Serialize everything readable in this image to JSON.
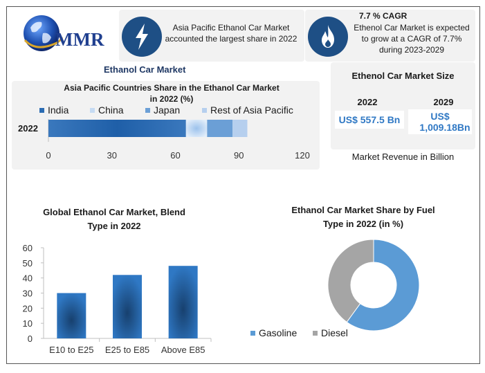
{
  "header": {
    "logo_text": "MMR",
    "card1_text": "Asia Pacific Ethanol Car Market accounted the largest share in 2022",
    "card2_title": "7.7 % CAGR",
    "card2_text": "Ethenol Car Market is expected to grow at a CAGR of 7.7% during 2023-2029"
  },
  "section_title": "Ethanol Car Market",
  "market_size": {
    "title": "Ethenol Car Market Size",
    "year1": "2022",
    "year2": "2029",
    "value1": "US$ 557.5 Bn",
    "value2_line1": "US$",
    "value2_line2": "1,009.18Bn",
    "caption": "Market Revenue in Billion"
  },
  "colors": {
    "india": "#2b6cb3",
    "china": "#c5dbf3",
    "japan": "#6b9fd6",
    "rest": "#b6cfee",
    "bar": "#2a6cb2",
    "gasoline": "#5b9bd5",
    "diesel": "#a5a5a5",
    "icon_circle": "#1e4f85"
  },
  "icons": [
    "lightning-icon",
    "flame-icon",
    "globe-icon"
  ],
  "chart_data": [
    {
      "type": "bar",
      "orientation": "horizontal-stacked",
      "title": "Asia Pacific Countries Share in the Ethanol Car Market in 2022 (%)",
      "title_line1": "Asia Pacific Countries Share in the Ethanol Car Market",
      "title_line2": "in 2022 (%)",
      "categories": [
        "2022"
      ],
      "series": [
        {
          "name": "India",
          "values": [
            65
          ]
        },
        {
          "name": "China",
          "values": [
            10
          ]
        },
        {
          "name": "Japan",
          "values": [
            12
          ]
        },
        {
          "name": "Rest of Asia Pacific",
          "values": [
            7
          ]
        }
      ],
      "xlim": [
        0,
        120
      ],
      "xticks": [
        "0",
        "30",
        "60",
        "90",
        "120"
      ],
      "legend": "top"
    },
    {
      "type": "bar",
      "title": "Global Ethanol Car Market, Blend Type in 2022",
      "title_line1": "Global Ethanol Car Market, Blend",
      "title_line2": "Type in 2022",
      "categories": [
        "E10 to E25",
        "E25 to E85",
        "Above E85"
      ],
      "values": [
        30,
        42,
        48
      ],
      "ylim": [
        0,
        60
      ],
      "yticks": [
        "0",
        "10",
        "20",
        "30",
        "40",
        "50",
        "60"
      ]
    },
    {
      "type": "pie",
      "style": "donut",
      "title": "Ethanol Car Market Share by Fuel Type in 2022 (in %)",
      "title_line1": "Ethanol Car Market Share by Fuel",
      "title_line2": "Type in 2022 (in %)",
      "labels": [
        "Gasoline",
        "Diesel"
      ],
      "values": [
        60,
        40
      ],
      "legend": "bottom"
    }
  ]
}
